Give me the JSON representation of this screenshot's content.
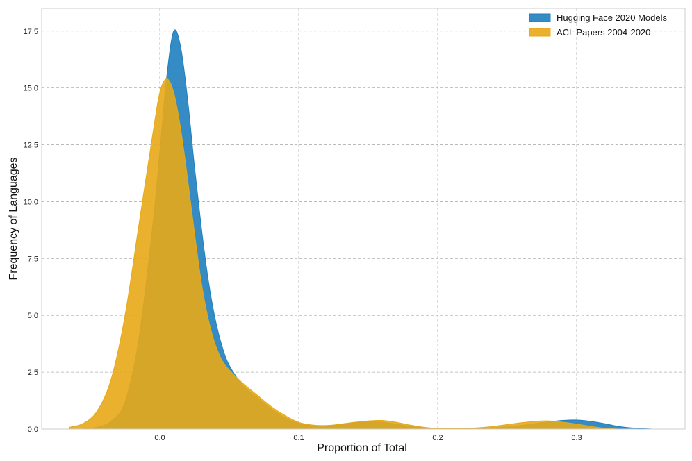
{
  "chart_data": {
    "type": "area",
    "title": "",
    "xlabel": "Proportion of Total",
    "ylabel": "Frequency of Languages",
    "xlim": [
      -0.085,
      0.378
    ],
    "ylim": [
      0,
      18.5
    ],
    "xticks": [
      0.0,
      0.1,
      0.2,
      0.3
    ],
    "xtick_labels": [
      "0.0",
      "0.1",
      "0.2",
      "0.3"
    ],
    "yticks": [
      0,
      2.5,
      5,
      7.5,
      10,
      12.5,
      15,
      17.5
    ],
    "ytick_labels": [
      "0.0",
      "2.5",
      "5.0",
      "7.5",
      "10.0",
      "12.5",
      "15.0",
      "17.5"
    ],
    "grid": true,
    "legend_position": "top-right",
    "series": [
      {
        "name": "Hugging Face 2020 Models",
        "color": "#1f7fbf",
        "x": [
          -0.055,
          -0.045,
          -0.035,
          -0.025,
          -0.015,
          -0.005,
          0.0,
          0.005,
          0.01,
          0.015,
          0.02,
          0.025,
          0.03,
          0.035,
          0.04,
          0.045,
          0.05,
          0.06,
          0.07,
          0.08,
          0.09,
          0.1,
          0.11,
          0.12,
          0.13,
          0.14,
          0.15,
          0.16,
          0.17,
          0.18,
          0.19,
          0.2,
          0.21,
          0.22,
          0.23,
          0.24,
          0.25,
          0.26,
          0.27,
          0.28,
          0.29,
          0.3,
          0.31,
          0.32,
          0.33,
          0.34,
          0.35,
          0.355
        ],
        "y": [
          0.02,
          0.08,
          0.35,
          1.2,
          4.0,
          9.0,
          12.2,
          15.5,
          17.5,
          16.8,
          14.5,
          11.5,
          8.8,
          6.5,
          4.8,
          3.6,
          2.8,
          1.9,
          1.4,
          0.9,
          0.5,
          0.25,
          0.15,
          0.15,
          0.2,
          0.28,
          0.32,
          0.3,
          0.22,
          0.12,
          0.06,
          0.03,
          0.02,
          0.02,
          0.03,
          0.06,
          0.1,
          0.16,
          0.24,
          0.32,
          0.38,
          0.4,
          0.34,
          0.24,
          0.12,
          0.05,
          0.01,
          0.0
        ]
      },
      {
        "name": "ACL Papers 2004-2020",
        "color": "#e8a817",
        "x": [
          -0.065,
          -0.055,
          -0.045,
          -0.035,
          -0.025,
          -0.015,
          -0.005,
          0.0,
          0.005,
          0.01,
          0.015,
          0.02,
          0.025,
          0.03,
          0.035,
          0.04,
          0.045,
          0.05,
          0.06,
          0.07,
          0.08,
          0.09,
          0.1,
          0.11,
          0.12,
          0.13,
          0.14,
          0.15,
          0.16,
          0.17,
          0.18,
          0.19,
          0.2,
          0.21,
          0.22,
          0.23,
          0.24,
          0.25,
          0.26,
          0.27,
          0.28,
          0.29,
          0.3,
          0.31,
          0.32,
          0.33
        ],
        "y": [
          0.08,
          0.25,
          0.8,
          2.2,
          5.0,
          9.0,
          13.0,
          14.8,
          15.4,
          14.8,
          13.2,
          11.0,
          8.6,
          6.4,
          4.8,
          3.7,
          3.0,
          2.6,
          2.0,
          1.5,
          1.0,
          0.6,
          0.3,
          0.18,
          0.16,
          0.22,
          0.3,
          0.36,
          0.38,
          0.3,
          0.18,
          0.08,
          0.03,
          0.02,
          0.03,
          0.06,
          0.12,
          0.2,
          0.28,
          0.34,
          0.36,
          0.3,
          0.22,
          0.12,
          0.04,
          0.0
        ]
      }
    ]
  }
}
